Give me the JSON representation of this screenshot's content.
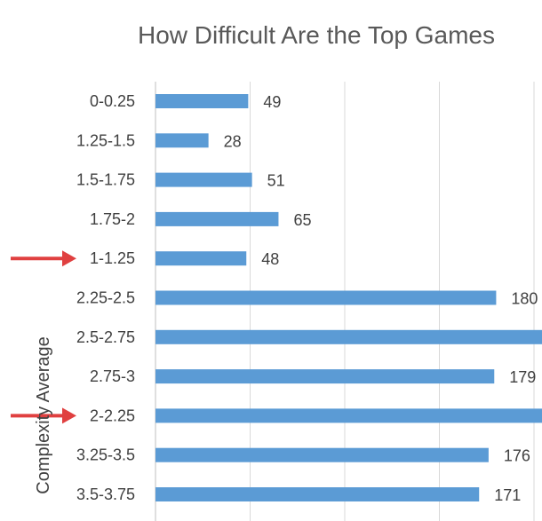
{
  "chart_data": {
    "type": "bar",
    "orientation": "horizontal",
    "title": "How Difficult Are the Top Games",
    "ylabel": "Complexity Average",
    "xlabel": "",
    "categories": [
      "0-0.25",
      "1.25-1.5",
      "1.5-1.75",
      "1.75-2",
      "1-1.25",
      "2.25-2.5",
      "2.5-2.75",
      "2.75-3",
      "2-2.25",
      "3.25-3.5",
      "3.5-3.75"
    ],
    "values": [
      49,
      28,
      51,
      65,
      48,
      180,
      215,
      179,
      215,
      176,
      171
    ],
    "data_labels": [
      "49",
      "28",
      "51",
      "65",
      "48",
      "180",
      "",
      "179",
      "",
      "176",
      "171"
    ],
    "xlim": [
      0,
      210
    ],
    "grid": true,
    "legend": "none",
    "bar_color": "#5B9BD5",
    "annotations": [
      {
        "type": "arrow",
        "target_category": "1-1.25",
        "color": "#E04040"
      },
      {
        "type": "arrow",
        "target_category": "2-2.25",
        "color": "#E04040"
      }
    ]
  }
}
